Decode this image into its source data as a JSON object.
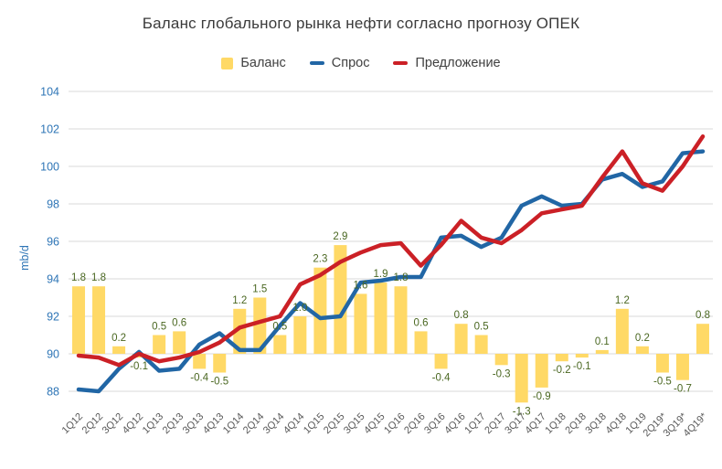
{
  "title": "Баланс глобального рынка нефти согласно прогнозу ОПЕК",
  "chart_data": {
    "type": "combo",
    "title": "Баланс глобального рынка нефти согласно прогнозу ОПЕК",
    "categories": [
      "1Q12",
      "2Q12",
      "3Q12",
      "4Q12",
      "1Q13",
      "2Q13",
      "3Q13",
      "4Q13",
      "1Q14",
      "2Q14",
      "3Q14",
      "4Q14",
      "1Q15",
      "2Q15",
      "3Q15",
      "4Q15",
      "1Q16",
      "2Q16",
      "3Q16",
      "4Q16",
      "1Q17",
      "2Q17",
      "3Q17",
      "4Q17",
      "1Q18",
      "2Q18",
      "3Q18",
      "4Q18",
      "1Q19",
      "2Q19*",
      "3Q19*",
      "4Q19*"
    ],
    "series": [
      {
        "name": "Баланс",
        "type": "bar",
        "color": "#FFD966",
        "label_color": "#4A6721",
        "values": [
          1.8,
          1.8,
          0.2,
          -0.1,
          0.5,
          0.6,
          -0.4,
          -0.5,
          1.2,
          1.5,
          0.5,
          1.0,
          2.3,
          2.9,
          1.6,
          1.9,
          1.8,
          0.6,
          -0.4,
          0.8,
          0.5,
          -0.3,
          -1.3,
          -0.9,
          -0.2,
          -0.1,
          0.1,
          1.2,
          0.2,
          -0.5,
          -0.7,
          0.8
        ],
        "value_labels_visible": true
      },
      {
        "name": "Спрос",
        "type": "line",
        "color": "#2166A5",
        "values": [
          88.1,
          88.0,
          89.2,
          90.1,
          89.1,
          89.2,
          90.5,
          91.1,
          90.2,
          90.2,
          91.5,
          92.7,
          91.9,
          92.0,
          93.8,
          93.9,
          94.1,
          94.1,
          96.2,
          96.3,
          95.7,
          96.2,
          97.9,
          98.4,
          97.9,
          98.0,
          99.3,
          99.6,
          98.9,
          99.2,
          100.7,
          100.8
        ]
      },
      {
        "name": "Предложение",
        "type": "line",
        "color": "#CB2026",
        "values": [
          89.9,
          89.8,
          89.4,
          90.0,
          89.6,
          89.8,
          90.1,
          90.6,
          91.4,
          91.7,
          92.0,
          93.7,
          94.2,
          94.9,
          95.4,
          95.8,
          95.9,
          94.7,
          95.8,
          97.1,
          96.2,
          95.9,
          96.6,
          97.5,
          97.7,
          97.9,
          99.4,
          100.8,
          99.1,
          98.7,
          100.0,
          101.6
        ]
      }
    ],
    "y_axis": {
      "title": "mb/d",
      "min": 88,
      "max": 104,
      "step": 2,
      "tick_labels": [
        "88",
        "90",
        "92",
        "94",
        "96",
        "98",
        "100",
        "102",
        "104"
      ],
      "tick_color": "#2E75B6"
    },
    "x_axis": {
      "tick_color": "#595959",
      "label_rotation_deg": -45
    },
    "bar_plot_rule": "bars drawn from baseline 90 on the left axis, 1 bar unit = 2 axis units",
    "grid": true,
    "grid_color": "#D9D9D9",
    "legend_position": "top",
    "ylim": [
      88,
      104
    ]
  }
}
